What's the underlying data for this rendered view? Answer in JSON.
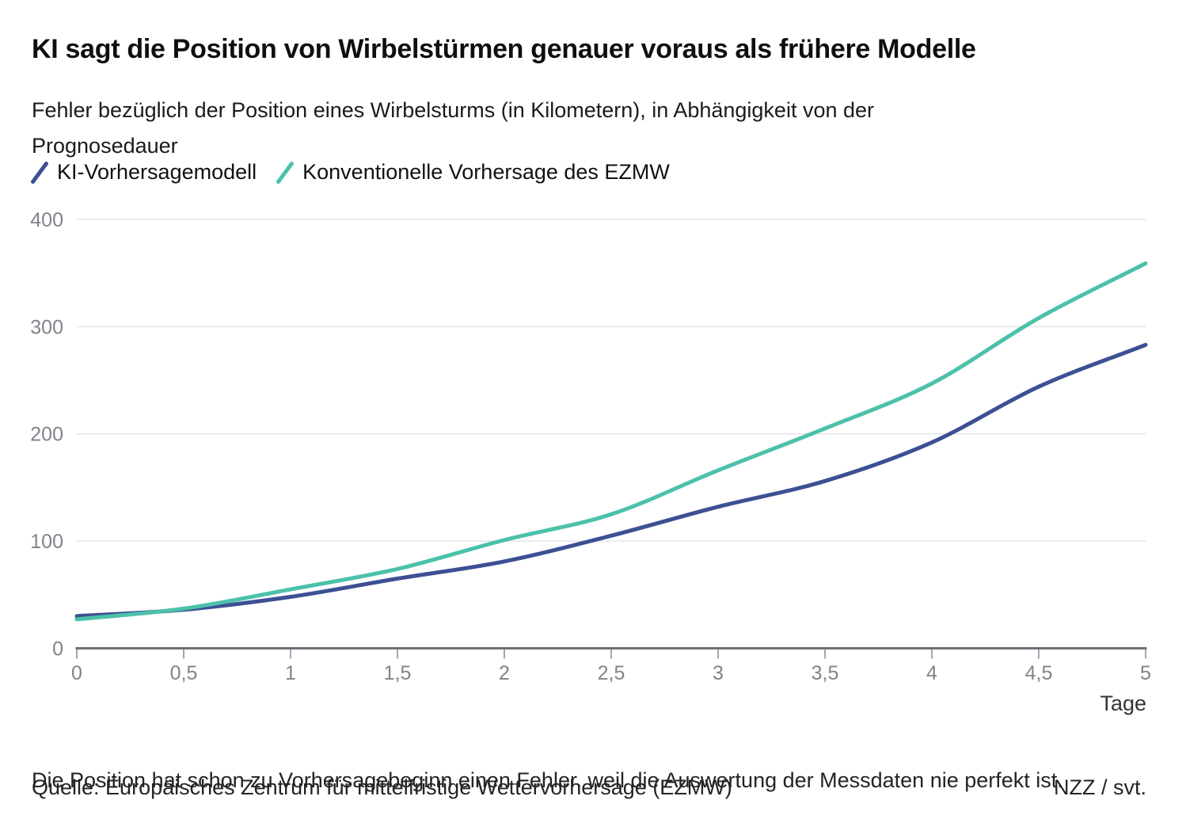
{
  "title": "KI sagt die Position von Wirbelstürmen genauer voraus als frühere Modelle",
  "subtitle": "Fehler bezüglich der Position eines Wirbelsturms (in Kilometern), in Abhängigkeit von der Prognosedauer",
  "legend": {
    "items": [
      {
        "label": "KI-Vorhersagemodell",
        "color": "#3d5094"
      },
      {
        "label": "Konventionelle Vorhersage des EZMW",
        "color": "#4cc1aa"
      }
    ]
  },
  "chart_data": {
    "type": "line",
    "title": "KI sagt die Position von Wirbelstürmen genauer voraus als frühere Modelle",
    "subtitle": "Fehler bezüglich der Position eines Wirbelsturms (in Kilometern), in Abhängigkeit von der Prognosedauer",
    "x": [
      0,
      0.5,
      1,
      1.5,
      2,
      2.5,
      3,
      3.5,
      4,
      4.5,
      5
    ],
    "x_tick_labels": [
      "0",
      "0,5",
      "1",
      "1,5",
      "2",
      "2,5",
      "3",
      "3,5",
      "4",
      "4,5",
      "5"
    ],
    "xlabel": "Tage",
    "ylabel": "",
    "xlim": [
      0,
      5
    ],
    "ylim": [
      0,
      400
    ],
    "yticks": [
      0,
      100,
      200,
      300,
      400
    ],
    "grid": "horizontal",
    "legend_position": "top",
    "series": [
      {
        "name": "KI-Vorhersagemodell",
        "color": "#3d5094",
        "values": [
          30,
          36,
          48,
          65,
          81,
          105,
          132,
          156,
          192,
          244,
          283
        ]
      },
      {
        "name": "Konventionelle Vorhersage des EZMW",
        "color": "#4cc1aa",
        "values": [
          27,
          37,
          55,
          74,
          101,
          125,
          166,
          205,
          247,
          308,
          359
        ]
      }
    ]
  },
  "axis_colors": {
    "gridline": "#e4e4e8",
    "axis_line": "#6f6f78",
    "tick_mark": "#a6a6ae",
    "tick_label": "#82828b",
    "unit_label": "#333333"
  },
  "footnote": "Die Position hat schon zu Vorhersagebeginn einen Fehler, weil die Auswertung der Messdaten nie perfekt ist.",
  "source": "Quelle: Europäisches Zentrum für mittelfristige Wettervorhersage (EZMW)",
  "credit": "NZZ / svt."
}
